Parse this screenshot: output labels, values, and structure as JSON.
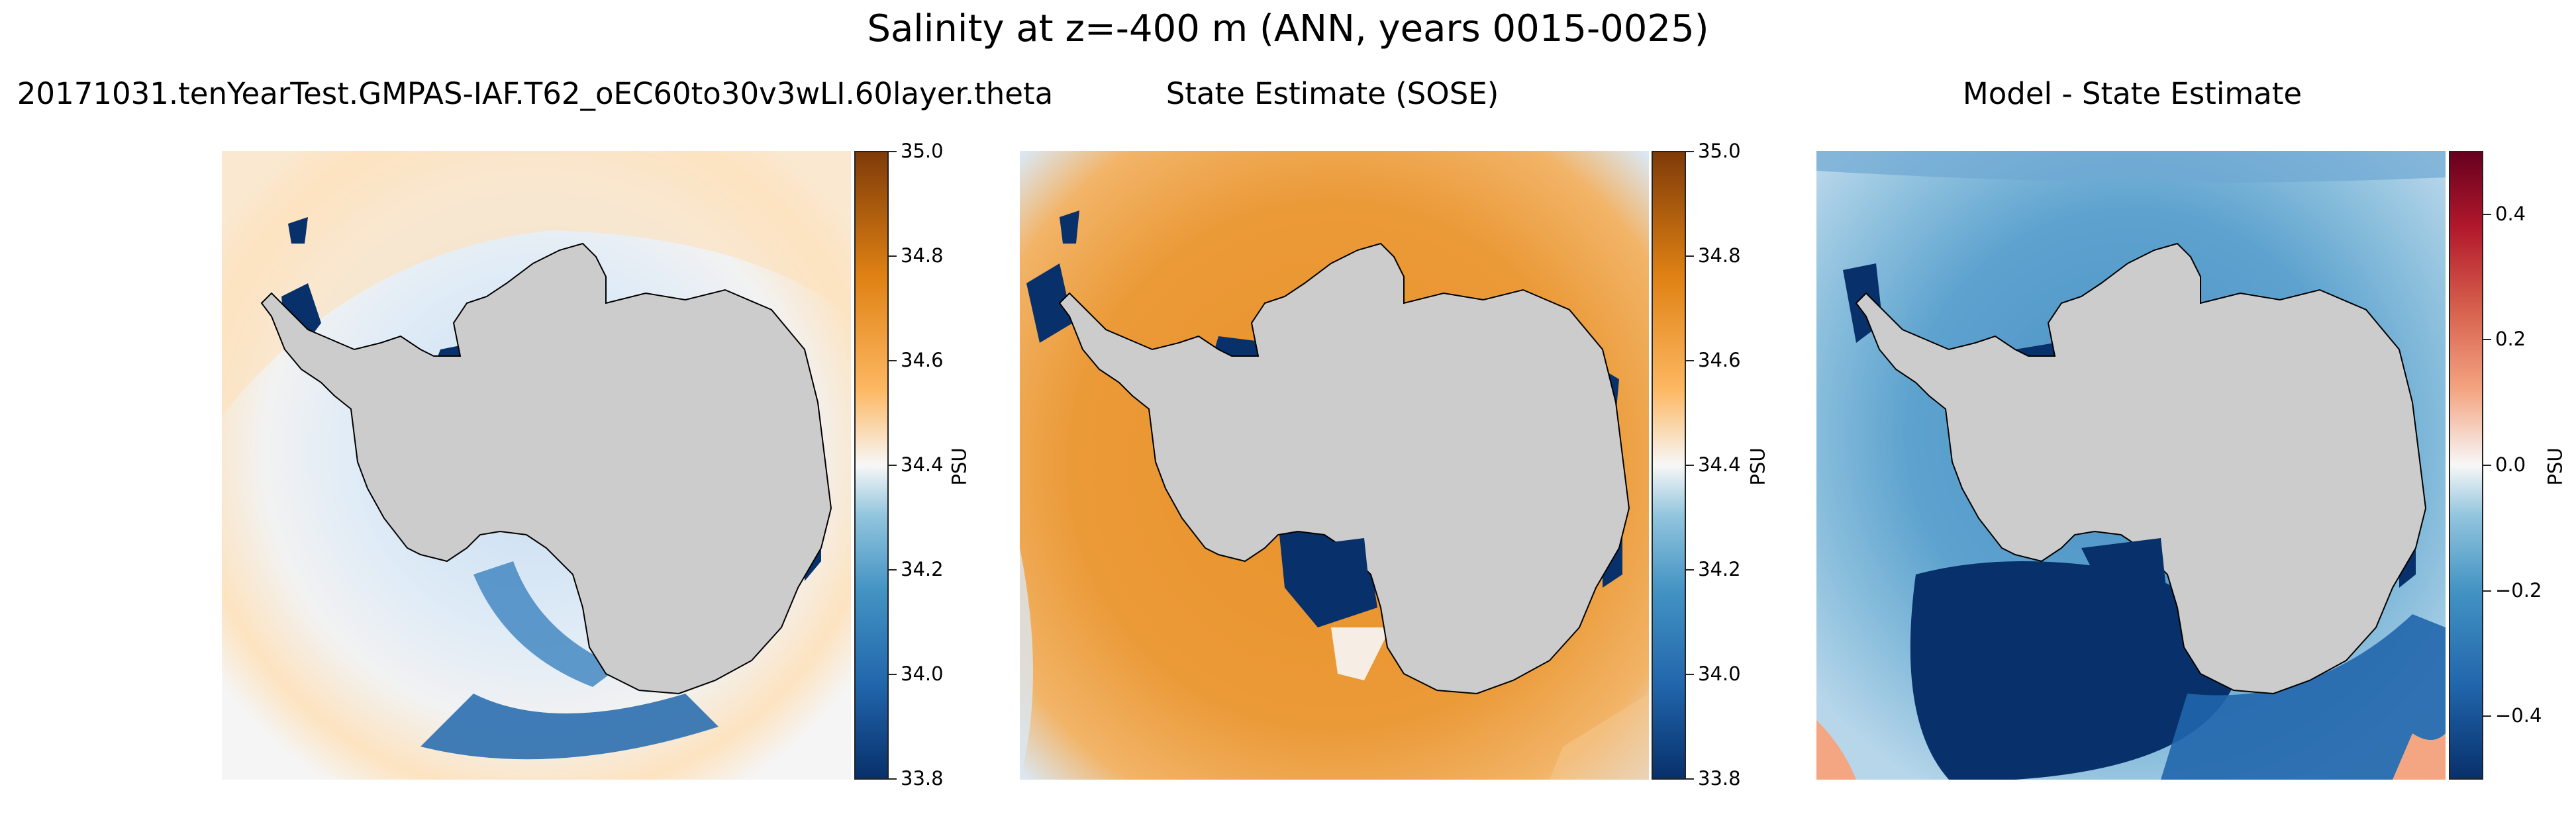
{
  "figure": {
    "suptitle": "Salinity at z=-400 m (ANN, years 0015-0025)"
  },
  "panels": [
    {
      "title": "20171031.tenYearTest.GMPAS-IAF.T62_oEC60to30v3wLI.60layer.theta",
      "colorbar": {
        "label": "PSU",
        "ticks": [
          "35.0",
          "34.8",
          "34.6",
          "34.4",
          "34.2",
          "34.0",
          "33.8"
        ],
        "range": [
          33.8,
          35.0
        ],
        "colormap": [
          "#08306b",
          "#2166ac",
          "#4393c3",
          "#92c5de",
          "#f7f7f7",
          "#fdb863",
          "#e08214",
          "#7f3b08"
        ]
      }
    },
    {
      "title": "State Estimate (SOSE)",
      "colorbar": {
        "label": "PSU",
        "ticks": [
          "35.0",
          "34.8",
          "34.6",
          "34.4",
          "34.2",
          "34.0",
          "33.8"
        ],
        "range": [
          33.8,
          35.0
        ],
        "colormap": [
          "#08306b",
          "#2166ac",
          "#4393c3",
          "#92c5de",
          "#f7f7f7",
          "#fdb863",
          "#e08214",
          "#7f3b08"
        ]
      }
    },
    {
      "title": "Model - State Estimate",
      "colorbar": {
        "label": "PSU",
        "ticks": [
          "0.4",
          "0.2",
          "0.0",
          "−0.2",
          "−0.4"
        ],
        "range": [
          -0.5,
          0.5
        ],
        "colormap": [
          "#08306b",
          "#2166ac",
          "#4393c3",
          "#92c5de",
          "#f7f7f7",
          "#f4a582",
          "#d6604d",
          "#b2182b",
          "#67001f"
        ]
      }
    }
  ],
  "colors": {
    "land": "#cccccc",
    "coast": "#000000"
  }
}
